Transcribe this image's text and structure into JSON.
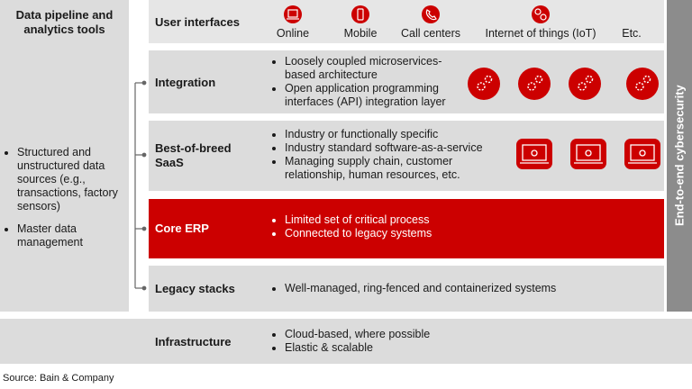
{
  "left_panel": {
    "title": "Data pipeline and analytics tools",
    "items": [
      "Structured and unstructured data sources (e.g., transactions, factory sensors)",
      "Master data management"
    ]
  },
  "layers": [
    {
      "label": "User interfaces",
      "channels": [
        "Online",
        "Mobile",
        "Call centers",
        "Internet of things (IoT)",
        "Etc."
      ]
    },
    {
      "label": "Integration",
      "bullets": [
        "Loosely coupled microservices-based architecture",
        "Open application programming interfaces (API) integration layer"
      ]
    },
    {
      "label": "Best-of-breed SaaS",
      "bullets": [
        "Industry or functionally specific",
        "Industry standard software-as-a-service",
        "Managing supply chain, customer relationship, human resources, etc."
      ]
    },
    {
      "label": "Core ERP",
      "bullets": [
        "Limited set of critical process",
        "Connected to legacy systems"
      ]
    },
    {
      "label": "Legacy stacks",
      "bullets": [
        "Well-managed, ring-fenced and containerized systems"
      ]
    }
  ],
  "cybersecurity": "End-to-end cybersecurity",
  "infrastructure": {
    "label": "Infrastructure",
    "bullets": [
      "Cloud-based, where possible",
      "Elastic & scalable"
    ]
  },
  "source": "Source: Bain & Company"
}
